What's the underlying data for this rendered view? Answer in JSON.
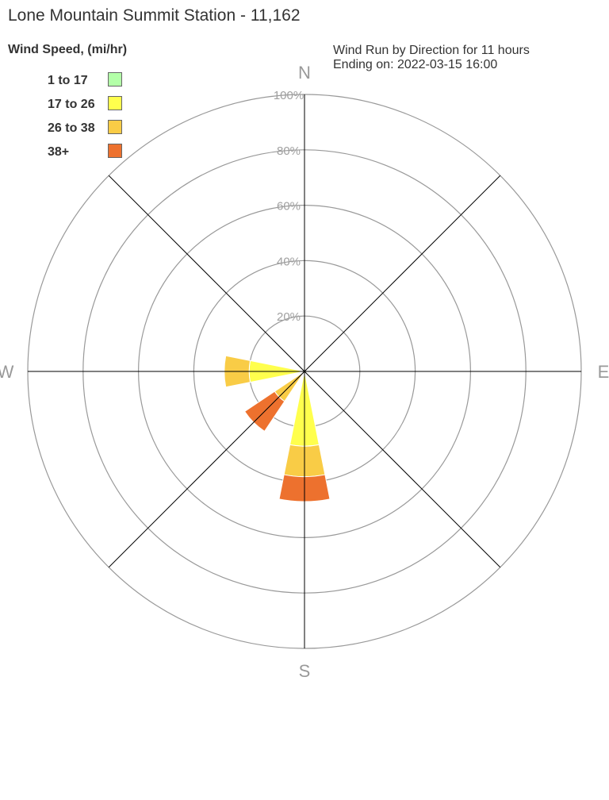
{
  "title": "Lone Mountain Summit Station - 11,162",
  "legend": {
    "title": "Wind Speed, (mi/hr)",
    "items": [
      {
        "label": "1 to 17",
        "color": "#b3ffa8"
      },
      {
        "label": "17 to 26",
        "color": "#ffff4d"
      },
      {
        "label": "26 to 38",
        "color": "#f9cc46"
      },
      {
        "label": "38+",
        "color": "#ed712e"
      }
    ]
  },
  "subtitle": {
    "line1": "Wind Run by Direction for 11 hours",
    "line2": "Ending on: 2022-03-15 16:00"
  },
  "chart_data": {
    "type": "wind-rose",
    "direction_labels": [
      {
        "label": "N",
        "angle": 0
      },
      {
        "label": "E",
        "angle": 90
      },
      {
        "label": "S",
        "angle": 180
      },
      {
        "label": "W",
        "angle": 270
      }
    ],
    "radial_ticks": [
      {
        "value": 20,
        "label": "20%"
      },
      {
        "value": 40,
        "label": "40%"
      },
      {
        "value": 60,
        "label": "60%"
      },
      {
        "value": 80,
        "label": "80%"
      },
      {
        "value": 100,
        "label": "100%"
      }
    ],
    "rmax": 100,
    "sector_width_deg": 22.5,
    "series_names": [
      "1 to 17",
      "17 to 26",
      "26 to 38",
      "38+"
    ],
    "sectors": [
      {
        "direction": "S",
        "angle": 180,
        "cumulative": [
          0,
          27,
          38,
          47
        ]
      },
      {
        "direction": "SW",
        "angle": 225,
        "cumulative": [
          0,
          0,
          13,
          26
        ]
      },
      {
        "direction": "WSW",
        "angle": 247.5,
        "cumulative": [
          0,
          0,
          0,
          0
        ]
      },
      {
        "direction": "W",
        "angle": 270,
        "cumulative": [
          0,
          20,
          29,
          29
        ]
      }
    ]
  }
}
